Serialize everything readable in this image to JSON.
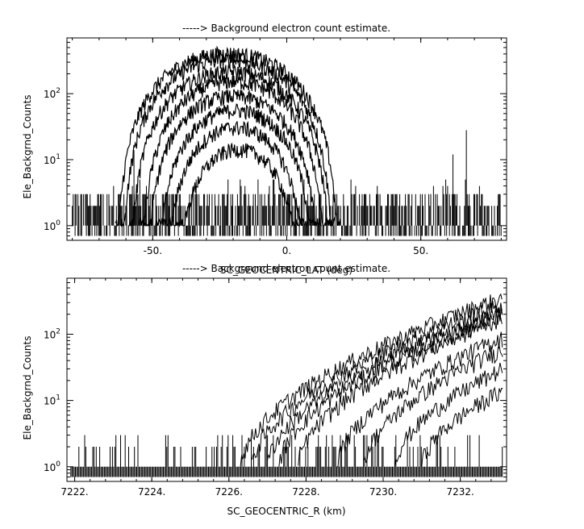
{
  "chart_data": [
    {
      "type": "line",
      "title": "-----> Background electron count estimate.",
      "xlabel": "SC_GEOCENTRIC_LAT (deg)",
      "ylabel": "Ele_Backgrnd_Counts",
      "xlim": [
        -82,
        82
      ],
      "ylim": [
        0.6,
        700
      ],
      "yscale": "log",
      "xticks": [
        -50,
        0,
        50
      ],
      "xtick_labels": [
        "-50.",
        "0.",
        "50."
      ],
      "yticks": [
        1,
        10,
        100
      ],
      "ytick_labels": [
        "10^0",
        "10^1",
        "10^2"
      ],
      "grid": false,
      "description_series": [
        {
          "peak_lat": -22,
          "peak_count": 400,
          "half_width": 42
        },
        {
          "peak_lat": -22,
          "peak_count": 320,
          "half_width": 40
        },
        {
          "peak_lat": -21,
          "peak_count": 210,
          "half_width": 38
        },
        {
          "peak_lat": -20,
          "peak_count": 150,
          "half_width": 35
        },
        {
          "peak_lat": -20,
          "peak_count": 90,
          "half_width": 33
        },
        {
          "peak_lat": -19,
          "peak_count": 55,
          "half_width": 30
        },
        {
          "peak_lat": -19,
          "peak_count": 30,
          "half_width": 27
        },
        {
          "peak_lat": -18,
          "peak_count": 14,
          "half_width": 24
        }
      ],
      "spikes": [
        {
          "x": -57,
          "y": 14
        },
        {
          "x": 62,
          "y": 12
        },
        {
          "x": 67,
          "y": 28
        }
      ]
    },
    {
      "type": "line",
      "title": "-----> Background electron count estimate.",
      "xlabel": "SC_GEOCENTRIC_R (km)",
      "ylabel": "Ele_Backgrnd_Counts",
      "xlim": [
        7221.8,
        7233.2
      ],
      "ylim": [
        0.6,
        700
      ],
      "yscale": "log",
      "xticks": [
        7222,
        7224,
        7226,
        7228,
        7230,
        7232
      ],
      "xtick_labels": [
        "7222.",
        "7224.",
        "7226.",
        "7228.",
        "7230.",
        "7232."
      ],
      "yticks": [
        1,
        10,
        100
      ],
      "ytick_labels": [
        "10^0",
        "10^1",
        "10^2"
      ],
      "grid": false,
      "description_series": [
        {
          "r_start": 7226.3,
          "end_count": 360
        },
        {
          "r_start": 7226.6,
          "end_count": 280
        },
        {
          "r_start": 7227.0,
          "end_count": 220
        },
        {
          "r_start": 7227.3,
          "end_count": 200
        },
        {
          "r_start": 7227.8,
          "end_count": 180
        },
        {
          "r_start": 7228.8,
          "end_count": 90
        },
        {
          "r_start": 7229.5,
          "end_count": 60
        },
        {
          "r_start": 7230.3,
          "end_count": 30
        },
        {
          "r_start": 7231.0,
          "end_count": 14
        }
      ]
    }
  ]
}
